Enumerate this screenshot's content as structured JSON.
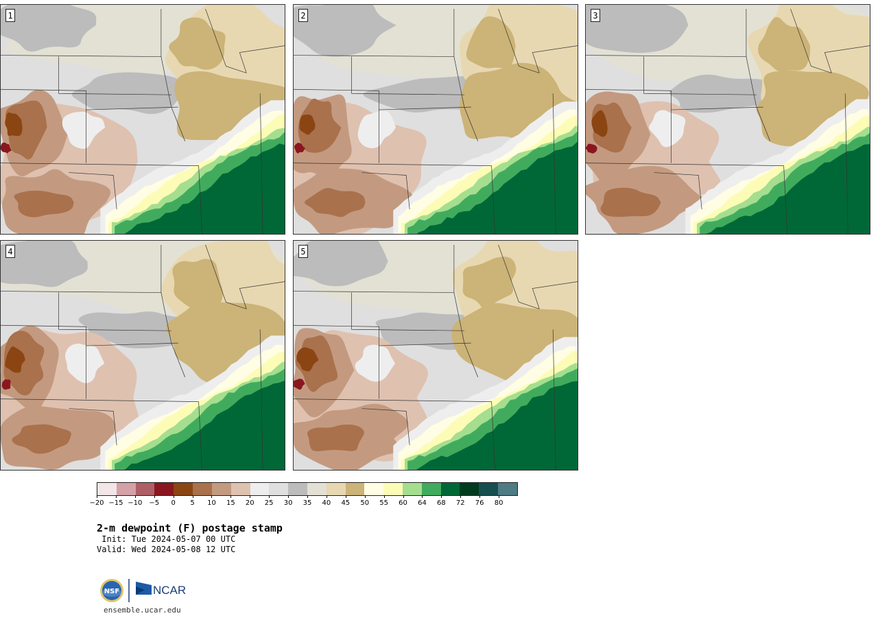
{
  "panels": [
    {
      "label": "1",
      "seed": 11
    },
    {
      "label": "2",
      "seed": 23
    },
    {
      "label": "3",
      "seed": 37
    },
    {
      "label": "4",
      "seed": 41
    },
    {
      "label": "5",
      "seed": 53
    }
  ],
  "colorbar": {
    "colors": [
      "#f3e6e8",
      "#d4a1a8",
      "#ae5f66",
      "#8a1720",
      "#8b4513",
      "#a9714c",
      "#c39a80",
      "#dfc1b0",
      "#eeeeee",
      "#dfdfdf",
      "#bcbcbc",
      "#e3e1d4",
      "#e7d8b1",
      "#ccb377",
      "#fffde3",
      "#fcfcb6",
      "#a5de8f",
      "#41ab5d",
      "#006837",
      "#003b20",
      "#174f50",
      "#4e7b84"
    ],
    "tick_labels": [
      "−20",
      "−15",
      "−10",
      "−5",
      "0",
      "5",
      "10",
      "15",
      "20",
      "25",
      "30",
      "35",
      "40",
      "45",
      "50",
      "55",
      "60",
      "64",
      "68",
      "72",
      "76",
      "80"
    ]
  },
  "title": "2-m dewpoint (F) postage stamp",
  "init": " Init: Tue 2024-05-07 00 UTC",
  "valid": "Valid: Wed 2024-05-08 12 UTC",
  "logo_text": "NCAR",
  "logo_nsf": "NSF",
  "website": "ensemble.ucar.edu"
}
